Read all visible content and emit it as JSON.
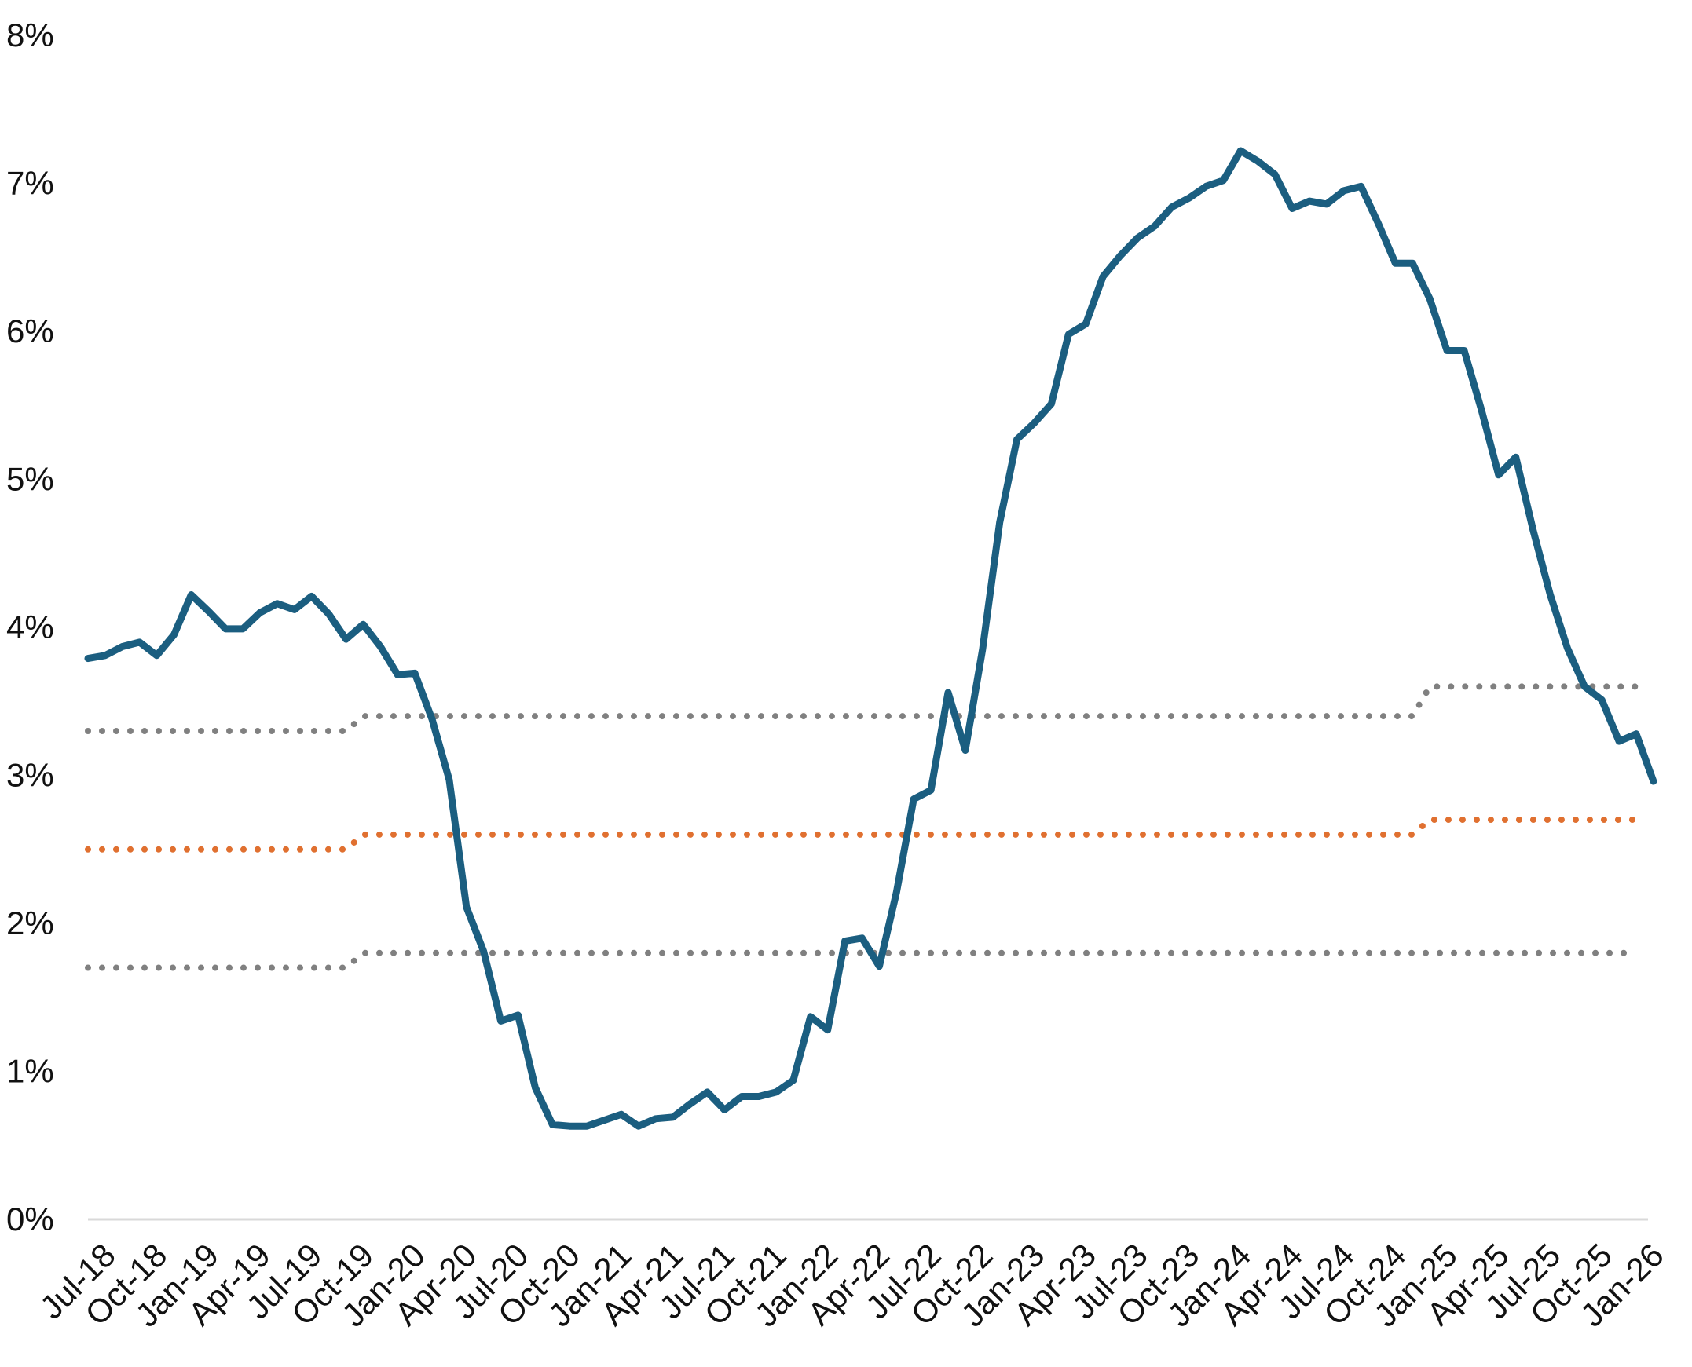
{
  "chart_data": {
    "type": "line",
    "title": "",
    "xlabel": "",
    "ylabel": "",
    "ylim": [
      0,
      8
    ],
    "y_ticks": [
      "0%",
      "1%",
      "2%",
      "3%",
      "4%",
      "5%",
      "6%",
      "7%",
      "8%"
    ],
    "x_start": "Jul-18",
    "x_tick_labels": [
      "Jul-18",
      "Oct-18",
      "Jan-19",
      "Apr-19",
      "Jul-19",
      "Oct-19",
      "Jan-20",
      "Apr-20",
      "Jul-20",
      "Oct-20",
      "Jan-21",
      "Apr-21",
      "Jul-21",
      "Oct-21",
      "Jan-22",
      "Apr-22",
      "Jul-22",
      "Oct-22",
      "Jan-23",
      "Apr-23",
      "Jul-23",
      "Oct-23",
      "Jan-24",
      "Apr-24",
      "Jul-24",
      "Oct-24",
      "Jan-25",
      "Apr-25",
      "Jul-25",
      "Oct-25",
      "Jan-26"
    ],
    "grid": false,
    "legend": "none",
    "series": [
      {
        "style": "solid",
        "color": "#1b5e80",
        "values": [
          3.79,
          3.81,
          3.87,
          3.9,
          3.81,
          3.95,
          4.22,
          4.11,
          3.99,
          3.99,
          4.1,
          4.16,
          4.12,
          4.21,
          4.09,
          3.92,
          4.02,
          3.87,
          3.68,
          3.69,
          3.38,
          2.97,
          2.11,
          1.81,
          1.34,
          1.38,
          0.89,
          0.64,
          0.63,
          0.63,
          0.67,
          0.71,
          0.63,
          0.68,
          0.69,
          0.78,
          0.86,
          0.74,
          0.83,
          0.83,
          0.86,
          0.94,
          1.37,
          1.28,
          1.88,
          1.9,
          1.71,
          2.21,
          2.84,
          2.9,
          3.56,
          3.17,
          3.85,
          4.71,
          5.27,
          5.38,
          5.51,
          5.98,
          6.05,
          6.37,
          6.51,
          6.63,
          6.71,
          6.84,
          6.9,
          6.98,
          7.02,
          7.22,
          7.15,
          7.06,
          6.83,
          6.88,
          6.86,
          6.95,
          6.98,
          6.73,
          6.46,
          6.46,
          6.22,
          5.87,
          5.87,
          5.47,
          5.03,
          5.15,
          4.66,
          4.22,
          3.86,
          3.6,
          3.51,
          3.23,
          3.28,
          2.96
        ]
      },
      {
        "style": "dotted",
        "color": "#808080",
        "values": [
          3.3,
          3.3,
          3.3,
          3.3,
          3.3,
          3.3,
          3.3,
          3.3,
          3.3,
          3.3,
          3.3,
          3.3,
          3.3,
          3.3,
          3.3,
          3.3,
          3.4,
          3.4,
          3.4,
          3.4,
          3.4,
          3.4,
          3.4,
          3.4,
          3.4,
          3.4,
          3.4,
          3.4,
          3.4,
          3.4,
          3.4,
          3.4,
          3.4,
          3.4,
          3.4,
          3.4,
          3.4,
          3.4,
          3.4,
          3.4,
          3.4,
          3.4,
          3.4,
          3.4,
          3.4,
          3.4,
          3.4,
          3.4,
          3.4,
          3.4,
          3.4,
          3.4,
          3.4,
          3.4,
          3.4,
          3.4,
          3.4,
          3.4,
          3.4,
          3.4,
          3.4,
          3.4,
          3.4,
          3.4,
          3.4,
          3.4,
          3.4,
          3.4,
          3.4,
          3.4,
          3.4,
          3.4,
          3.4,
          3.4,
          3.4,
          3.4,
          3.4,
          3.4,
          3.6,
          3.6,
          3.6,
          3.6,
          3.6,
          3.6,
          3.6,
          3.6,
          3.6,
          3.6,
          3.6,
          3.6,
          3.6
        ]
      },
      {
        "style": "dotted",
        "color": "#e07030",
        "values": [
          2.5,
          2.5,
          2.5,
          2.5,
          2.5,
          2.5,
          2.5,
          2.5,
          2.5,
          2.5,
          2.5,
          2.5,
          2.5,
          2.5,
          2.5,
          2.5,
          2.6,
          2.6,
          2.6,
          2.6,
          2.6,
          2.6,
          2.6,
          2.6,
          2.6,
          2.6,
          2.6,
          2.6,
          2.6,
          2.6,
          2.6,
          2.6,
          2.6,
          2.6,
          2.6,
          2.6,
          2.6,
          2.6,
          2.6,
          2.6,
          2.6,
          2.6,
          2.6,
          2.6,
          2.6,
          2.6,
          2.6,
          2.6,
          2.6,
          2.6,
          2.6,
          2.6,
          2.6,
          2.6,
          2.6,
          2.6,
          2.6,
          2.6,
          2.6,
          2.6,
          2.6,
          2.6,
          2.6,
          2.6,
          2.6,
          2.6,
          2.6,
          2.6,
          2.6,
          2.6,
          2.6,
          2.6,
          2.6,
          2.6,
          2.6,
          2.6,
          2.6,
          2.6,
          2.7,
          2.7,
          2.7,
          2.7,
          2.7,
          2.7,
          2.7,
          2.7,
          2.7,
          2.7,
          2.7,
          2.7,
          2.7
        ]
      },
      {
        "style": "dotted",
        "color": "#808080",
        "values": [
          1.7,
          1.7,
          1.7,
          1.7,
          1.7,
          1.7,
          1.7,
          1.7,
          1.7,
          1.7,
          1.7,
          1.7,
          1.7,
          1.7,
          1.7,
          1.7,
          1.8,
          1.8,
          1.8,
          1.8,
          1.8,
          1.8,
          1.8,
          1.8,
          1.8,
          1.8,
          1.8,
          1.8,
          1.8,
          1.8,
          1.8,
          1.8,
          1.8,
          1.8,
          1.8,
          1.8,
          1.8,
          1.8,
          1.8,
          1.8,
          1.8,
          1.8,
          1.8,
          1.8,
          1.8,
          1.8,
          1.8,
          1.8,
          1.8,
          1.8,
          1.8,
          1.8,
          1.8,
          1.8,
          1.8,
          1.8,
          1.8,
          1.8,
          1.8,
          1.8,
          1.8,
          1.8,
          1.8,
          1.8,
          1.8,
          1.8,
          1.8,
          1.8,
          1.8,
          1.8,
          1.8,
          1.8,
          1.8,
          1.8,
          1.8,
          1.8,
          1.8,
          1.8,
          1.8,
          1.8,
          1.8,
          1.8,
          1.8,
          1.8,
          1.8,
          1.8,
          1.8,
          1.8,
          1.8,
          1.8,
          1.8
        ]
      }
    ]
  }
}
